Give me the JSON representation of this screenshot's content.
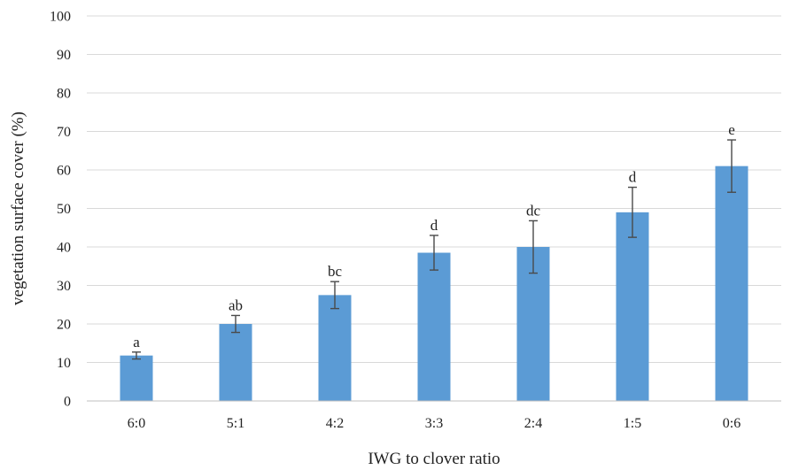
{
  "chart_data": {
    "type": "bar",
    "categories": [
      "6:0",
      "5:1",
      "4:2",
      "3:3",
      "2:4",
      "1:5",
      "0:6"
    ],
    "values": [
      11.8,
      20.0,
      27.5,
      38.5,
      40.0,
      49.0,
      61.0
    ],
    "error": [
      0.9,
      2.2,
      3.5,
      4.5,
      6.8,
      6.5,
      6.8
    ],
    "letters": [
      "a",
      "ab",
      "bc",
      "d",
      "dc",
      "d",
      "e"
    ],
    "xlabel": "IWG to clover ratio",
    "ylabel": "vegetation surface cover (%)",
    "ylim": [
      0,
      100
    ],
    "yticks": [
      0,
      10,
      20,
      30,
      40,
      50,
      60,
      70,
      80,
      90,
      100
    ],
    "grid": true,
    "bar_color": "#5b9bd5"
  }
}
